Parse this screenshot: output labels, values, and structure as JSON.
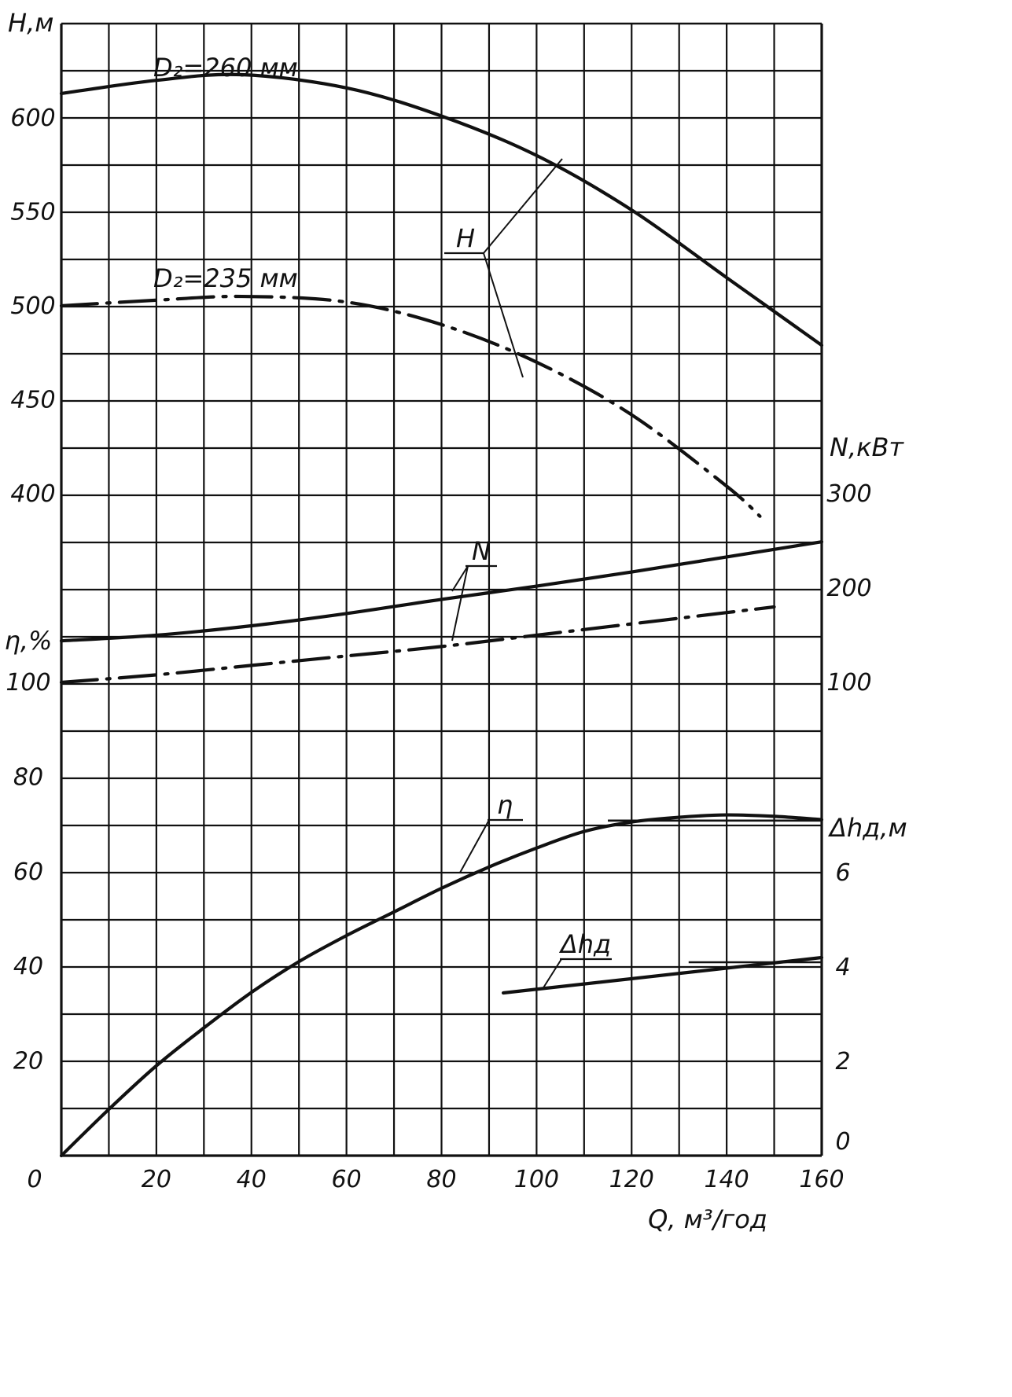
{
  "chart_data": {
    "type": "line",
    "grid": true,
    "x_axis": {
      "label": "Q, м³/год",
      "range": [
        0,
        160
      ],
      "ticks": [
        "0",
        "20",
        "40",
        "60",
        "80",
        "100",
        "120",
        "140",
        "160"
      ],
      "tick_values": [
        0,
        20,
        40,
        60,
        80,
        100,
        120,
        140,
        160
      ]
    },
    "y_axes": {
      "H": {
        "label": "H,м",
        "range": [
          320,
          650
        ],
        "ticks": [
          "400",
          "450",
          "500",
          "550",
          "600"
        ],
        "tick_values": [
          400,
          450,
          500,
          550,
          600
        ]
      },
      "eta": {
        "label": "η,%",
        "range": [
          0,
          110
        ],
        "ticks": [
          "0",
          "20",
          "40",
          "60",
          "80",
          "100"
        ],
        "tick_values": [
          0,
          20,
          40,
          60,
          80,
          100
        ]
      },
      "N": {
        "label": "N,кВт",
        "range": [
          0,
          400
        ],
        "ticks": [
          "100",
          "200",
          "300"
        ],
        "tick_values": [
          100,
          200,
          300
        ]
      },
      "dh": {
        "label": "Δhд,м",
        "range": [
          0,
          10
        ],
        "ticks": [
          "0",
          "2",
          "4",
          "6"
        ],
        "tick_values": [
          0,
          2,
          4,
          6
        ]
      }
    },
    "series": [
      {
        "key": "H_260",
        "axis": "H",
        "style": "solid",
        "x": [
          0,
          20,
          38,
          60,
          80,
          100,
          120,
          140,
          160
        ],
        "y": [
          613,
          620,
          623,
          616,
          601,
          580,
          551,
          515,
          479
        ]
      },
      {
        "key": "H_235",
        "axis": "H",
        "style": "dashdot",
        "x": [
          0,
          20,
          38,
          60,
          80,
          100,
          120,
          140,
          147
        ],
        "y": [
          500,
          503,
          505,
          502,
          490,
          470,
          442,
          404,
          388
        ]
      },
      {
        "key": "N_260",
        "axis": "N",
        "style": "solid",
        "x": [
          0,
          20,
          40,
          60,
          80,
          100,
          120,
          140,
          160
        ],
        "y": [
          144,
          150,
          160,
          173,
          188,
          202,
          217,
          233,
          249
        ]
      },
      {
        "key": "N_235",
        "axis": "N",
        "style": "dashdot",
        "x": [
          0,
          20,
          40,
          60,
          80,
          100,
          120,
          140,
          150
        ],
        "y": [
          100,
          108,
          118,
          128,
          138,
          150,
          162,
          174,
          180
        ]
      },
      {
        "key": "eta",
        "axis": "eta",
        "style": "solid",
        "x": [
          0,
          10,
          20,
          30,
          40,
          50,
          60,
          70,
          80,
          90,
          100,
          110,
          120,
          130,
          140,
          150,
          160
        ],
        "y": [
          0,
          9.8,
          19,
          27,
          34.5,
          41,
          46.5,
          51.5,
          56.5,
          61,
          65,
          68.5,
          70.5,
          71.5,
          72,
          71.7,
          71
        ],
        "ref_line": {
          "x": [
            115,
            160
          ],
          "y": [
            70.8,
            70.8
          ]
        }
      },
      {
        "key": "dh",
        "axis": "dh",
        "style": "solid",
        "x": [
          93,
          160
        ],
        "y": [
          3.45,
          4.2
        ],
        "ref_line": {
          "x": [
            132,
            160
          ],
          "y": [
            4.1,
            4.1
          ]
        }
      }
    ],
    "annotations": {
      "D2_260": "D₂=260 мм",
      "D2_235": "D₂=235 мм",
      "H": "H",
      "N": "N",
      "eta": "η",
      "dh": "Δhд"
    }
  }
}
